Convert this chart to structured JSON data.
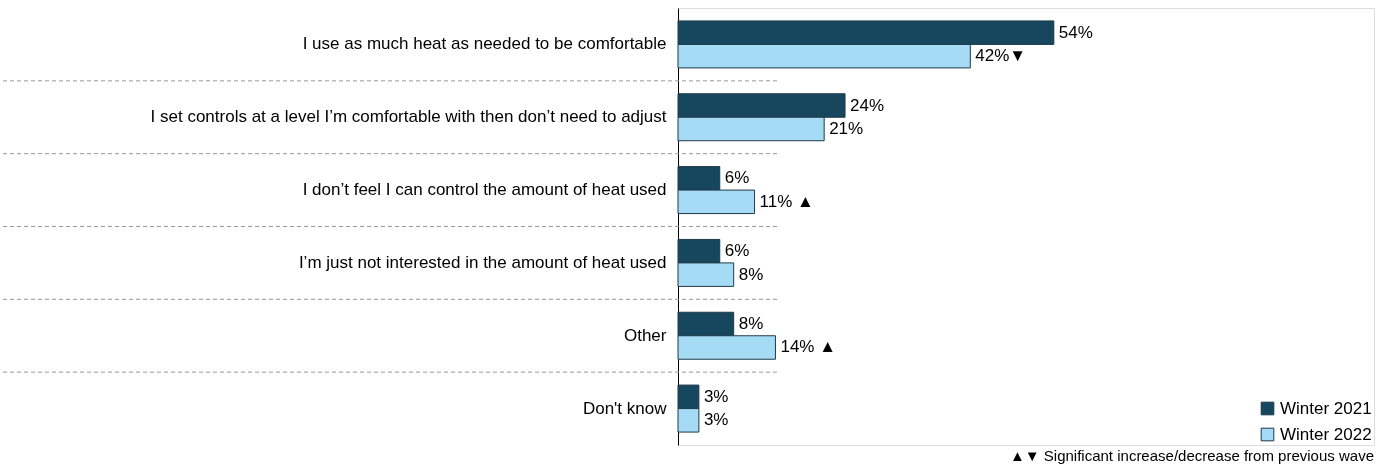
{
  "chart_data": {
    "type": "bar",
    "orientation": "horizontal",
    "categories": [
      "I use as much heat as needed to be comfortable",
      "I set controls at a level I’m comfortable with then don’t need to adjust",
      "I don’t feel I can control the amount of heat used",
      "I’m just not interested in the amount of heat used",
      "Other",
      "Don't know"
    ],
    "series": [
      {
        "name": "Winter 2021",
        "color": "#16475f",
        "values": [
          54,
          24,
          6,
          6,
          8,
          3
        ],
        "value_labels": [
          "54%",
          "24%",
          "6%",
          "6%",
          "8%",
          "3%"
        ]
      },
      {
        "name": "Winter 2022",
        "color": "#a6dbf5",
        "values": [
          42,
          21,
          11,
          8,
          14,
          3
        ],
        "value_labels": [
          "42%▼",
          "21%",
          "11% ▲",
          "8%",
          "14% ▲",
          "3%"
        ]
      }
    ],
    "xlim": [
      0,
      100
    ],
    "tick_labels": "y",
    "grid": true,
    "legend": "bottom right",
    "annotations": [
      "▲▼ Significant increase/decrease from previous wave"
    ]
  }
}
